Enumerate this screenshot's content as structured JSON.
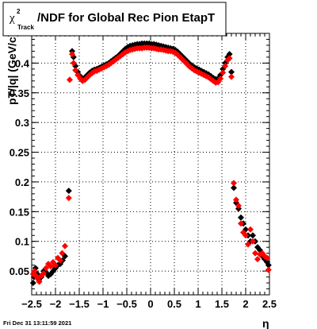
{
  "chart_data": {
    "type": "scatter",
    "title": {
      "symbol": "χ",
      "superscript": "2",
      "subscript": "Track",
      "text": "/NDF for Global Rec Pion EtapT"
    },
    "xlabel": "η",
    "ylabel": "pT/|q| (GeV/c)",
    "xlim": [
      -2.5,
      2.5
    ],
    "ylim": [
      0.01,
      0.45
    ],
    "x_ticks": [
      -2.5,
      -2,
      -1.5,
      -1,
      -0.5,
      0,
      0.5,
      1,
      1.5,
      2,
      2.5
    ],
    "x_tick_labels": [
      "−2.5",
      "−2",
      "−1.5",
      "−1",
      "−0.5",
      "0",
      "0.5",
      "1",
      "1.5",
      "2",
      "2.5"
    ],
    "y_ticks": [
      0.05,
      0.1,
      0.15,
      0.2,
      0.25,
      0.3,
      0.35,
      0.4
    ],
    "y_tick_labels": [
      "0.05",
      "0.1",
      "0.15",
      "0.2",
      "0.25",
      "0.3",
      "0.35",
      "0.4"
    ],
    "grid": true,
    "series": [
      {
        "color": "#000000",
        "marker": "diamond",
        "points": [
          [
            -2.47,
            0.03
          ],
          [
            -2.45,
            0.04
          ],
          [
            -2.42,
            0.055
          ],
          [
            -2.38,
            0.045
          ],
          [
            -2.35,
            0.035
          ],
          [
            -2.3,
            0.04
          ],
          [
            -2.25,
            0.05
          ],
          [
            -2.2,
            0.048
          ],
          [
            -2.15,
            0.042
          ],
          [
            -2.1,
            0.045
          ],
          [
            -2.05,
            0.05
          ],
          [
            -2.0,
            0.055
          ],
          [
            -1.95,
            0.06
          ],
          [
            -1.9,
            0.062
          ],
          [
            -1.85,
            0.068
          ],
          [
            -1.8,
            0.075
          ],
          [
            -1.72,
            0.185
          ],
          [
            -1.65,
            0.42
          ],
          [
            -1.62,
            0.41
          ],
          [
            -1.58,
            0.395
          ],
          [
            -1.53,
            0.385
          ],
          [
            -1.48,
            0.378
          ],
          [
            -1.43,
            0.374
          ],
          [
            -1.38,
            0.376
          ],
          [
            -1.33,
            0.38
          ],
          [
            -1.28,
            0.384
          ],
          [
            -1.23,
            0.387
          ],
          [
            -1.18,
            0.389
          ],
          [
            -1.13,
            0.39
          ],
          [
            -1.08,
            0.392
          ],
          [
            -1.03,
            0.394
          ],
          [
            -0.98,
            0.396
          ],
          [
            -0.93,
            0.398
          ],
          [
            -0.88,
            0.4
          ],
          [
            -0.83,
            0.403
          ],
          [
            -0.78,
            0.406
          ],
          [
            -0.73,
            0.409
          ],
          [
            -0.68,
            0.412
          ],
          [
            -0.63,
            0.416
          ],
          [
            -0.58,
            0.42
          ],
          [
            -0.53,
            0.424
          ],
          [
            -0.48,
            0.427
          ],
          [
            -0.43,
            0.429
          ],
          [
            -0.38,
            0.43
          ],
          [
            -0.33,
            0.431
          ],
          [
            -0.28,
            0.432
          ],
          [
            -0.23,
            0.432
          ],
          [
            -0.18,
            0.433
          ],
          [
            -0.13,
            0.433
          ],
          [
            -0.08,
            0.433
          ],
          [
            -0.03,
            0.433
          ],
          [
            0.02,
            0.432
          ],
          [
            0.07,
            0.432
          ],
          [
            0.12,
            0.431
          ],
          [
            0.17,
            0.43
          ],
          [
            0.22,
            0.429
          ],
          [
            0.27,
            0.428
          ],
          [
            0.32,
            0.427
          ],
          [
            0.37,
            0.426
          ],
          [
            0.42,
            0.425
          ],
          [
            0.47,
            0.424
          ],
          [
            0.52,
            0.422
          ],
          [
            0.57,
            0.419
          ],
          [
            0.62,
            0.415
          ],
          [
            0.67,
            0.411
          ],
          [
            0.72,
            0.407
          ],
          [
            0.77,
            0.403
          ],
          [
            0.82,
            0.399
          ],
          [
            0.87,
            0.396
          ],
          [
            0.92,
            0.393
          ],
          [
            0.97,
            0.391
          ],
          [
            1.02,
            0.389
          ],
          [
            1.07,
            0.387
          ],
          [
            1.12,
            0.385
          ],
          [
            1.17,
            0.383
          ],
          [
            1.22,
            0.381
          ],
          [
            1.27,
            0.378
          ],
          [
            1.32,
            0.375
          ],
          [
            1.37,
            0.373
          ],
          [
            1.42,
            0.374
          ],
          [
            1.47,
            0.38
          ],
          [
            1.52,
            0.39
          ],
          [
            1.57,
            0.4
          ],
          [
            1.62,
            0.41
          ],
          [
            1.66,
            0.415
          ],
          [
            1.7,
            0.385
          ],
          [
            1.75,
            0.19
          ],
          [
            1.8,
            0.165
          ],
          [
            1.85,
            0.155
          ],
          [
            1.9,
            0.14
          ],
          [
            1.95,
            0.13
          ],
          [
            2.0,
            0.12
          ],
          [
            2.05,
            0.11
          ],
          [
            2.1,
            0.1
          ],
          [
            2.15,
            0.11
          ],
          [
            2.2,
            0.1
          ],
          [
            2.25,
            0.09
          ],
          [
            2.3,
            0.085
          ],
          [
            2.35,
            0.075
          ],
          [
            2.4,
            0.07
          ],
          [
            2.45,
            0.065
          ],
          [
            2.48,
            0.06
          ]
        ]
      },
      {
        "color": "#ff0000",
        "marker": "diamond",
        "points": [
          [
            -2.47,
            0.045
          ],
          [
            -2.44,
            0.05
          ],
          [
            -2.41,
            0.042
          ],
          [
            -2.38,
            0.038
          ],
          [
            -2.34,
            0.032
          ],
          [
            -2.3,
            0.042
          ],
          [
            -2.25,
            0.046
          ],
          [
            -2.2,
            0.055
          ],
          [
            -2.15,
            0.062
          ],
          [
            -2.1,
            0.058
          ],
          [
            -2.05,
            0.065
          ],
          [
            -2.0,
            0.06
          ],
          [
            -1.95,
            0.072
          ],
          [
            -1.9,
            0.068
          ],
          [
            -1.86,
            0.08
          ],
          [
            -1.8,
            0.092
          ],
          [
            -1.72,
            0.173
          ],
          [
            -1.7,
            0.372
          ],
          [
            -1.65,
            0.415
          ],
          [
            -1.62,
            0.4
          ],
          [
            -1.58,
            0.388
          ],
          [
            -1.53,
            0.38
          ],
          [
            -1.48,
            0.374
          ],
          [
            -1.43,
            0.37
          ],
          [
            -1.38,
            0.372
          ],
          [
            -1.33,
            0.376
          ],
          [
            -1.28,
            0.38
          ],
          [
            -1.23,
            0.383
          ],
          [
            -1.18,
            0.386
          ],
          [
            -1.13,
            0.387
          ],
          [
            -1.08,
            0.389
          ],
          [
            -1.03,
            0.391
          ],
          [
            -0.98,
            0.393
          ],
          [
            -0.93,
            0.395
          ],
          [
            -0.88,
            0.397
          ],
          [
            -0.83,
            0.4
          ],
          [
            -0.78,
            0.403
          ],
          [
            -0.73,
            0.406
          ],
          [
            -0.68,
            0.409
          ],
          [
            -0.63,
            0.412
          ],
          [
            -0.58,
            0.415
          ],
          [
            -0.53,
            0.418
          ],
          [
            -0.48,
            0.42
          ],
          [
            -0.43,
            0.422
          ],
          [
            -0.38,
            0.423
          ],
          [
            -0.33,
            0.424
          ],
          [
            -0.28,
            0.425
          ],
          [
            -0.23,
            0.425
          ],
          [
            -0.18,
            0.425
          ],
          [
            -0.13,
            0.426
          ],
          [
            -0.08,
            0.426
          ],
          [
            -0.03,
            0.426
          ],
          [
            0.02,
            0.425
          ],
          [
            0.07,
            0.425
          ],
          [
            0.12,
            0.424
          ],
          [
            0.17,
            0.423
          ],
          [
            0.22,
            0.423
          ],
          [
            0.27,
            0.422
          ],
          [
            0.32,
            0.421
          ],
          [
            0.37,
            0.42
          ],
          [
            0.42,
            0.42
          ],
          [
            0.47,
            0.419
          ],
          [
            0.52,
            0.417
          ],
          [
            0.57,
            0.414
          ],
          [
            0.62,
            0.41
          ],
          [
            0.67,
            0.406
          ],
          [
            0.72,
            0.402
          ],
          [
            0.77,
            0.398
          ],
          [
            0.82,
            0.394
          ],
          [
            0.87,
            0.391
          ],
          [
            0.92,
            0.388
          ],
          [
            0.97,
            0.386
          ],
          [
            1.02,
            0.384
          ],
          [
            1.07,
            0.382
          ],
          [
            1.12,
            0.38
          ],
          [
            1.17,
            0.378
          ],
          [
            1.22,
            0.376
          ],
          [
            1.27,
            0.373
          ],
          [
            1.32,
            0.37
          ],
          [
            1.37,
            0.367
          ],
          [
            1.42,
            0.368
          ],
          [
            1.47,
            0.374
          ],
          [
            1.52,
            0.384
          ],
          [
            1.57,
            0.395
          ],
          [
            1.62,
            0.405
          ],
          [
            1.66,
            0.408
          ],
          [
            1.7,
            0.377
          ],
          [
            1.75,
            0.198
          ],
          [
            1.8,
            0.17
          ],
          [
            1.85,
            0.16
          ],
          [
            1.9,
            0.13
          ],
          [
            1.95,
            0.115
          ],
          [
            2.0,
            0.11
          ],
          [
            2.05,
            0.095
          ],
          [
            2.1,
            0.12
          ],
          [
            2.15,
            0.1
          ],
          [
            2.2,
            0.08
          ],
          [
            2.25,
            0.07
          ],
          [
            2.3,
            0.078
          ],
          [
            2.35,
            0.08
          ],
          [
            2.4,
            0.075
          ],
          [
            2.45,
            0.072
          ],
          [
            2.48,
            0.052
          ]
        ]
      }
    ]
  },
  "footer": {
    "timestamp": "Fri Dec 31 13:11:59 2021"
  }
}
